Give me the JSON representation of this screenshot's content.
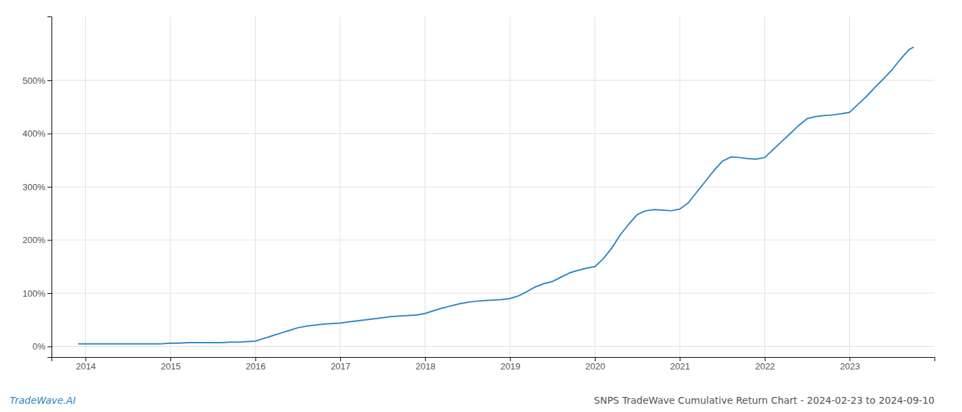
{
  "chart_data": {
    "type": "line",
    "title": "SNPS TradeWave Cumulative Return Chart - 2024-02-23 to 2024-09-10",
    "annotations": [
      "TradeWave.AI"
    ],
    "color": "#2E86C1",
    "grid": true,
    "x": [
      2013.92,
      2014.0,
      2014.1,
      2014.2,
      2014.3,
      2014.4,
      2014.5,
      2014.6,
      2014.7,
      2014.8,
      2014.9,
      2015.0,
      2015.1,
      2015.2,
      2015.3,
      2015.4,
      2015.5,
      2015.6,
      2015.7,
      2015.8,
      2015.9,
      2016.0,
      2016.1,
      2016.2,
      2016.3,
      2016.4,
      2016.5,
      2016.6,
      2016.7,
      2016.8,
      2016.9,
      2017.0,
      2017.1,
      2017.2,
      2017.3,
      2017.4,
      2017.5,
      2017.6,
      2017.7,
      2017.8,
      2017.9,
      2018.0,
      2018.1,
      2018.2,
      2018.3,
      2018.4,
      2018.5,
      2018.6,
      2018.7,
      2018.8,
      2018.9,
      2019.0,
      2019.1,
      2019.2,
      2019.3,
      2019.4,
      2019.5,
      2019.6,
      2019.7,
      2019.8,
      2019.9,
      2020.0,
      2020.1,
      2020.2,
      2020.3,
      2020.4,
      2020.5,
      2020.6,
      2020.7,
      2020.8,
      2020.9,
      2021.0,
      2021.1,
      2021.2,
      2021.3,
      2021.4,
      2021.5,
      2021.6,
      2021.7,
      2021.8,
      2021.9,
      2022.0,
      2022.1,
      2022.2,
      2022.3,
      2022.4,
      2022.5,
      2022.6,
      2022.7,
      2022.8,
      2022.9,
      2023.0,
      2023.1,
      2023.2,
      2023.3,
      2023.4,
      2023.5,
      2023.6,
      2023.7,
      2023.75
    ],
    "values": [
      5,
      5,
      5,
      5,
      5,
      5,
      5,
      5,
      5,
      5,
      5,
      6,
      6,
      7,
      7,
      7,
      7,
      7,
      8,
      8,
      9,
      10,
      15,
      20,
      25,
      30,
      35,
      38,
      40,
      42,
      43,
      44,
      46,
      48,
      50,
      52,
      54,
      56,
      57,
      58,
      59,
      62,
      67,
      72,
      76,
      80,
      83,
      85,
      86,
      87,
      88,
      90,
      95,
      103,
      112,
      118,
      122,
      130,
      138,
      143,
      147,
      150,
      165,
      185,
      210,
      230,
      248,
      255,
      257,
      256,
      255,
      258,
      270,
      290,
      310,
      330,
      348,
      356,
      355,
      353,
      352,
      355,
      370,
      385,
      400,
      415,
      428,
      432,
      434,
      435,
      437,
      440,
      455,
      470,
      487,
      503,
      520,
      540,
      558,
      562
    ],
    "xlim": [
      2013.6,
      2024.0
    ],
    "xticks": [
      2014,
      2015,
      2016,
      2017,
      2018,
      2019,
      2020,
      2021,
      2022,
      2023
    ],
    "ylim": [
      -20,
      620
    ],
    "yticks": [
      {
        "value": 0,
        "label": "0%"
      },
      {
        "value": 100,
        "label": "100%"
      },
      {
        "value": 200,
        "label": "200%"
      },
      {
        "value": 300,
        "label": "300%"
      },
      {
        "value": 400,
        "label": "400%"
      },
      {
        "value": 500,
        "label": "500%"
      }
    ]
  }
}
